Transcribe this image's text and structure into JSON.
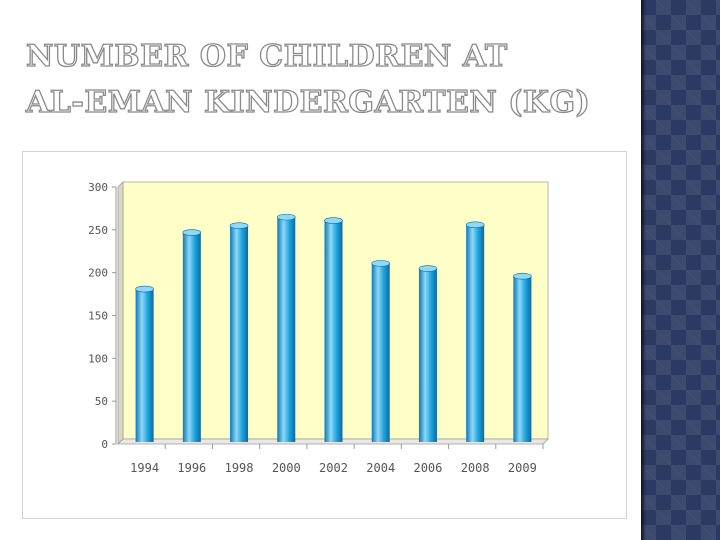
{
  "slide": {
    "title_line1": "NUMBER OF CHILDREN AT",
    "title_line2": "AL-EMAN KINDERGARTEN (KG)"
  },
  "colors": {
    "plot_background": "#ffffc8",
    "bar": "#1aa0dc",
    "bar_highlight": "#8fd8f8",
    "bar_shadow": "#0a6aa0",
    "side_panel": "#2c3a63"
  },
  "chart_data": {
    "type": "bar",
    "categories": [
      "1994",
      "1996",
      "1998",
      "2000",
      "2002",
      "2004",
      "2006",
      "2008",
      "2009"
    ],
    "values": [
      175,
      241,
      249,
      259,
      255,
      205,
      199,
      250,
      190
    ],
    "title": "",
    "xlabel": "",
    "ylabel": "",
    "ylim": [
      0,
      300
    ],
    "yticks": [
      "0",
      "50",
      "100",
      "150",
      "200",
      "250",
      "300"
    ],
    "grid": false,
    "legend": "none",
    "style": "3d-cylinder"
  }
}
